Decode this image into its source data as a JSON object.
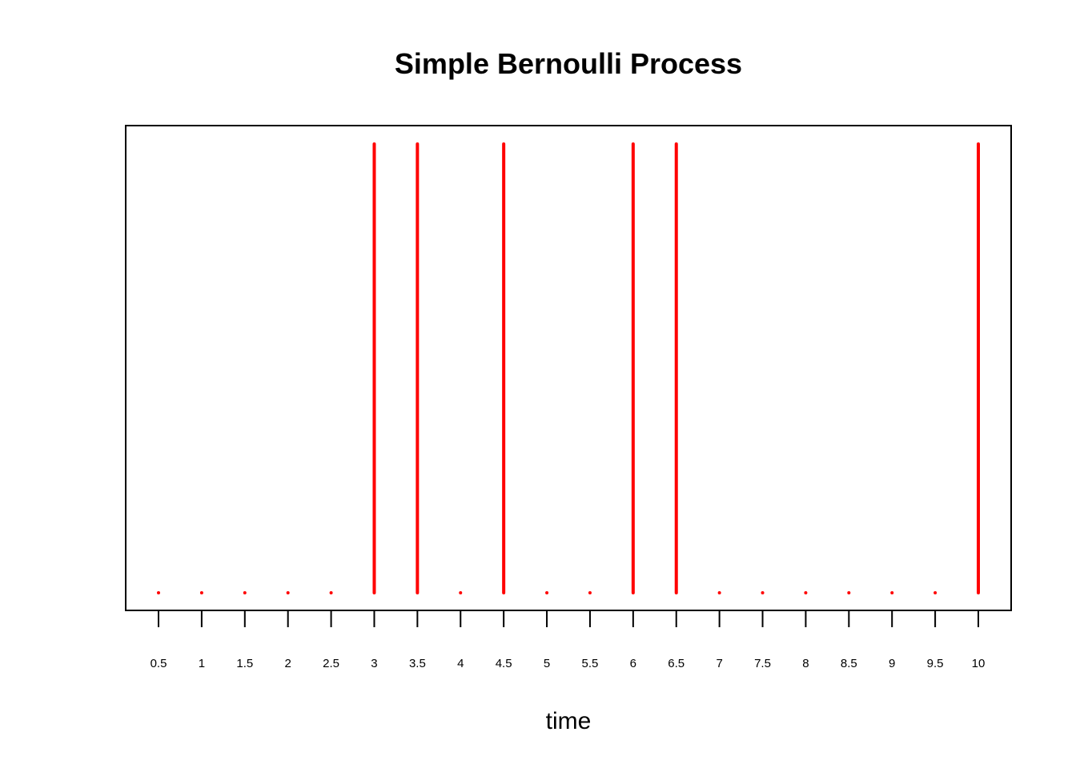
{
  "chart_data": {
    "type": "bar",
    "plot_style": "vertical lines (type h)",
    "title": "Simple Bernoulli Process",
    "xlabel": "time",
    "ylabel": "",
    "x": [
      0.5,
      1,
      1.5,
      2,
      2.5,
      3,
      3.5,
      4,
      4.5,
      5,
      5.5,
      6,
      6.5,
      7,
      7.5,
      8,
      8.5,
      9,
      9.5,
      10
    ],
    "values": [
      0,
      0,
      0,
      0,
      0,
      1,
      1,
      0,
      1,
      0,
      0,
      1,
      1,
      0,
      0,
      0,
      0,
      0,
      0,
      1
    ],
    "tick_labels": [
      "0.5",
      "1",
      "1.5",
      "2",
      "2.5",
      "3",
      "3.5",
      "4",
      "4.5",
      "5",
      "5.5",
      "6",
      "6.5",
      "7",
      "7.5",
      "8",
      "8.5",
      "9",
      "9.5",
      "10"
    ],
    "ylim": [
      0,
      1
    ],
    "y_axis_shown": false,
    "grid": false,
    "series_color": "#ff0000"
  }
}
